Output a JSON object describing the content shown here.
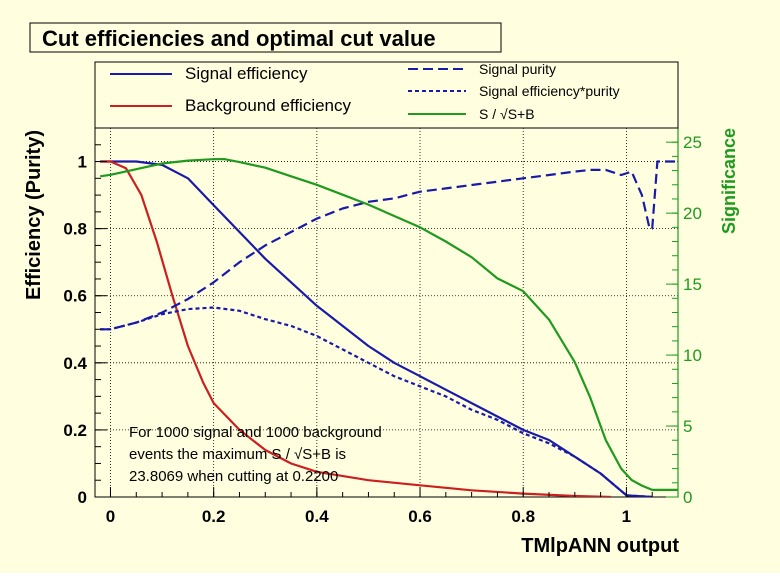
{
  "title": "Cut efficiencies and optimal cut value",
  "colors": {
    "background": "#ffffe0",
    "signal": "#1a1aa8",
    "background_eff": "#cc1f1f",
    "significance": "#1f9a1f"
  },
  "chart_data": {
    "type": "line",
    "title": "Cut efficiencies and optimal cut value",
    "xlabel": "TMlpANN output",
    "ylabel": "Efficiency (Purity)",
    "y2label": "Significance",
    "xlim": [
      -0.03,
      1.1
    ],
    "ylim": [
      0,
      1.1
    ],
    "y2lim": [
      0,
      26
    ],
    "grid": true,
    "legend_position": "top",
    "x_ticks": [
      "0",
      "0.2",
      "0.4",
      "0.6",
      "0.8",
      "1"
    ],
    "y_ticks": [
      "0",
      "0.2",
      "0.4",
      "0.6",
      "0.8",
      "1"
    ],
    "y2_ticks": [
      "0",
      "5",
      "10",
      "15",
      "20",
      "25"
    ],
    "legend": [
      {
        "label": "Signal efficiency",
        "style": "solid",
        "series": 0
      },
      {
        "label": "Background efficiency",
        "style": "solid",
        "series": 1
      },
      {
        "label": "Signal purity",
        "style": "dashed",
        "series": 2
      },
      {
        "label": "Signal efficiency*purity",
        "style": "dotted",
        "series": 3
      },
      {
        "label": "S / √S+B",
        "style": "solid",
        "series": 4
      }
    ],
    "annotation": [
      "For 1000 signal and 1000 background",
      "events the maximum S / √S+B is",
      "23.8069 when cutting at 0.2200"
    ],
    "series": [
      {
        "name": "Signal efficiency",
        "axis": "left",
        "color": "#1a1aa8",
        "dash": "none",
        "x": [
          -0.02,
          0.0,
          0.05,
          0.1,
          0.15,
          0.2,
          0.25,
          0.3,
          0.35,
          0.4,
          0.45,
          0.5,
          0.55,
          0.6,
          0.65,
          0.7,
          0.75,
          0.8,
          0.85,
          0.9,
          0.95,
          1.0,
          1.05
        ],
        "y": [
          1.0,
          1.0,
          1.0,
          0.99,
          0.95,
          0.87,
          0.79,
          0.71,
          0.64,
          0.57,
          0.51,
          0.45,
          0.4,
          0.36,
          0.32,
          0.28,
          0.24,
          0.2,
          0.17,
          0.12,
          0.07,
          0.005,
          0.0
        ]
      },
      {
        "name": "Background efficiency",
        "axis": "left",
        "color": "#cc1f1f",
        "dash": "none",
        "x": [
          -0.02,
          0.0,
          0.03,
          0.06,
          0.09,
          0.12,
          0.15,
          0.18,
          0.2,
          0.25,
          0.3,
          0.35,
          0.4,
          0.5,
          0.6,
          0.7,
          0.8,
          0.9,
          0.97
        ],
        "y": [
          1.0,
          1.0,
          0.98,
          0.9,
          0.76,
          0.6,
          0.45,
          0.34,
          0.28,
          0.2,
          0.14,
          0.1,
          0.075,
          0.05,
          0.035,
          0.02,
          0.01,
          0.003,
          0.0
        ]
      },
      {
        "name": "Signal purity",
        "axis": "left",
        "color": "#1a1aa8",
        "dash": "10,5",
        "x": [
          -0.02,
          0.0,
          0.05,
          0.1,
          0.15,
          0.2,
          0.25,
          0.3,
          0.35,
          0.4,
          0.45,
          0.5,
          0.55,
          0.6,
          0.65,
          0.7,
          0.75,
          0.8,
          0.85,
          0.9,
          0.93,
          0.96,
          0.99,
          1.01,
          1.03,
          1.045,
          1.05,
          1.06,
          1.1
        ],
        "y": [
          0.5,
          0.5,
          0.52,
          0.55,
          0.59,
          0.64,
          0.7,
          0.75,
          0.79,
          0.83,
          0.86,
          0.88,
          0.89,
          0.91,
          0.92,
          0.93,
          0.94,
          0.95,
          0.96,
          0.97,
          0.975,
          0.975,
          0.96,
          0.97,
          0.9,
          0.8,
          0.8,
          1.0,
          1.0
        ]
      },
      {
        "name": "Signal efficiency*purity",
        "axis": "left",
        "color": "#1a1aa8",
        "dash": "4,3",
        "x": [
          -0.02,
          0.0,
          0.05,
          0.1,
          0.15,
          0.2,
          0.25,
          0.3,
          0.35,
          0.4,
          0.45,
          0.5,
          0.55,
          0.6,
          0.65,
          0.7,
          0.75,
          0.8,
          0.85,
          0.9,
          0.95,
          1.0,
          1.05
        ],
        "y": [
          0.5,
          0.5,
          0.52,
          0.545,
          0.56,
          0.565,
          0.555,
          0.53,
          0.51,
          0.48,
          0.44,
          0.4,
          0.36,
          0.33,
          0.3,
          0.26,
          0.23,
          0.19,
          0.16,
          0.12,
          0.07,
          0.005,
          0.0
        ]
      },
      {
        "name": "S / √S+B",
        "axis": "right",
        "color": "#1f9a1f",
        "dash": "none",
        "x": [
          -0.02,
          0.0,
          0.05,
          0.1,
          0.15,
          0.2,
          0.22,
          0.25,
          0.3,
          0.35,
          0.4,
          0.45,
          0.5,
          0.55,
          0.6,
          0.65,
          0.7,
          0.75,
          0.8,
          0.85,
          0.9,
          0.93,
          0.96,
          0.99,
          1.01,
          1.03,
          1.05,
          1.1
        ],
        "y": [
          22.6,
          22.7,
          23.1,
          23.5,
          23.7,
          23.8,
          23.81,
          23.6,
          23.2,
          22.6,
          22.0,
          21.3,
          20.6,
          19.8,
          19.0,
          18.0,
          16.9,
          15.4,
          14.5,
          12.5,
          9.5,
          7.0,
          4.0,
          2.0,
          1.2,
          0.8,
          0.5,
          0.5
        ]
      }
    ]
  }
}
